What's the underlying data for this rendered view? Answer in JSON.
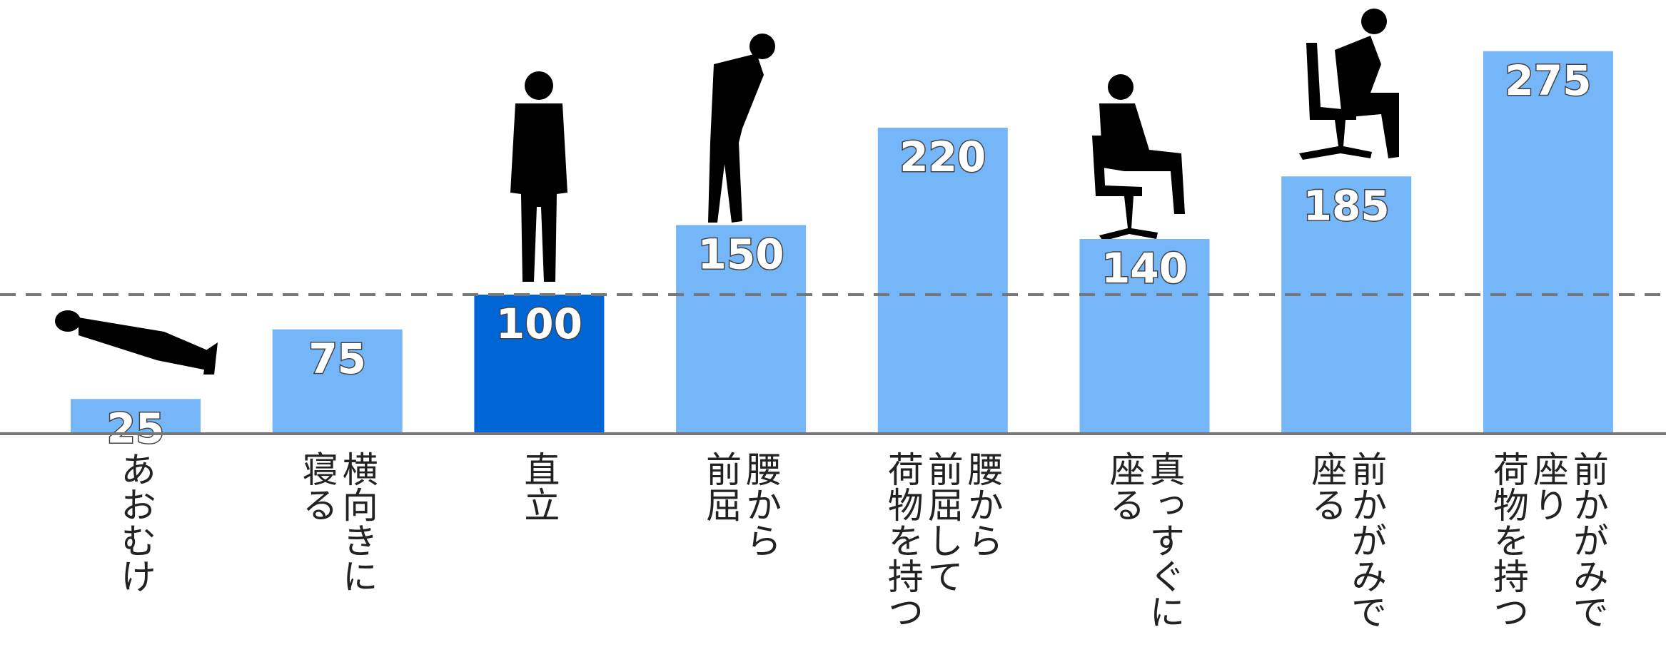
{
  "chart_data": {
    "type": "bar",
    "categories": [
      "あおむけ",
      "横向きに\n寝る",
      "直立",
      "腰から\n前屈",
      "腰から\n前屈して\n荷物を持つ",
      "真っすぐに\n座る",
      "前かがみで\n座る",
      "前かがみで\n座り\n荷物を持つ"
    ],
    "values": [
      25,
      75,
      100,
      150,
      220,
      140,
      185,
      275
    ],
    "colors": [
      "#74b6f7",
      "#74b6f7",
      "#0066d6",
      "#74b6f7",
      "#74b6f7",
      "#74b6f7",
      "#74b6f7",
      "#74b6f7"
    ],
    "ylim": [
      0,
      300
    ],
    "reference_line": 100
  }
}
